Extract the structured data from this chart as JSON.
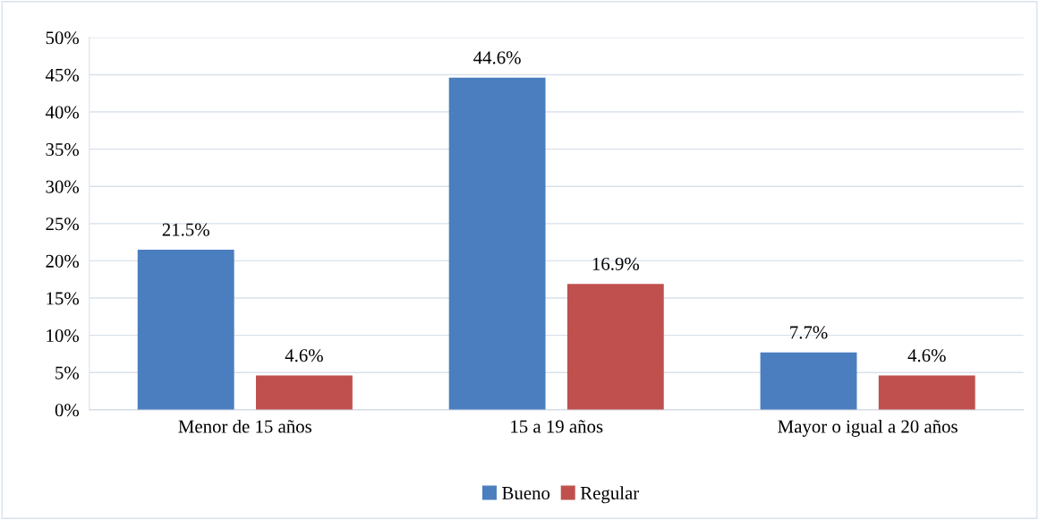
{
  "chart_data": {
    "type": "bar",
    "categories": [
      "Menor de 15 años",
      "15 a 19 años",
      "Mayor o igual a 20 años"
    ],
    "series": [
      {
        "name": "Bueno",
        "color": "#4a7ebf",
        "values": [
          21.5,
          44.6,
          7.7
        ],
        "value_labels": [
          "21.5%",
          "44.6%",
          "7.7%"
        ]
      },
      {
        "name": "Regular",
        "color": "#c0504d",
        "values": [
          4.6,
          16.9,
          4.6
        ],
        "value_labels": [
          "4.6%",
          "16.9%",
          "4.6%"
        ]
      }
    ],
    "ylim": [
      0,
      50
    ],
    "yticks": [
      {
        "value": 0,
        "label": "0%"
      },
      {
        "value": 5,
        "label": "5%"
      },
      {
        "value": 10,
        "label": "10%"
      },
      {
        "value": 15,
        "label": "15%"
      },
      {
        "value": 20,
        "label": "20%"
      },
      {
        "value": 25,
        "label": "25%"
      },
      {
        "value": 30,
        "label": "30%"
      },
      {
        "value": 35,
        "label": "35%"
      },
      {
        "value": 40,
        "label": "40%"
      },
      {
        "value": 45,
        "label": "45%"
      },
      {
        "value": 50,
        "label": "50%"
      }
    ],
    "grid": "y",
    "legend": "bottom"
  }
}
